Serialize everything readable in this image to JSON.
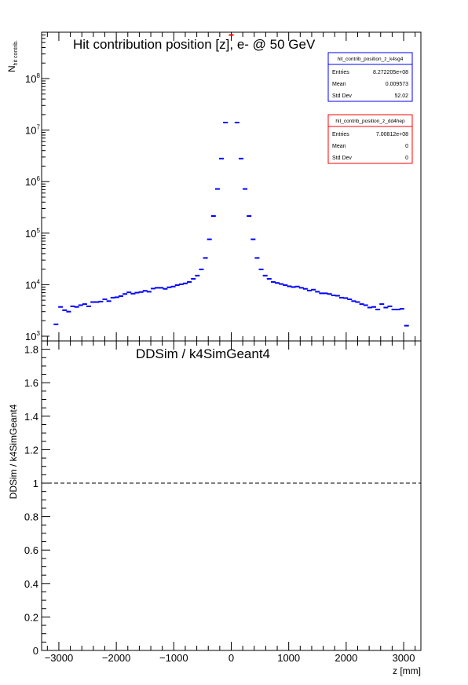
{
  "chart_data": [
    {
      "type": "line",
      "title": "Hit contribution position [z],  e- @ 50 GeV",
      "xlabel": "",
      "ylabel": "N",
      "ylabel_sub": "hit contrib.",
      "yscale": "log",
      "xlim": [
        -3300,
        3300
      ],
      "ylim": [
        900,
        700000000
      ],
      "yticks": [
        {
          "value": 1000,
          "base": "10",
          "exp": "3"
        },
        {
          "value": 10000,
          "base": "10",
          "exp": "4"
        },
        {
          "value": 100000,
          "base": "10",
          "exp": "5"
        },
        {
          "value": 1000000,
          "base": "10",
          "exp": "6"
        },
        {
          "value": 10000000,
          "base": "10",
          "exp": "7"
        },
        {
          "value": 100000000,
          "base": "10",
          "exp": "8"
        }
      ],
      "series": [
        {
          "name": "hit_contrib_position_z_k4sg4",
          "color": "#0000ff",
          "x": [
            -3050,
            -2970,
            -2900,
            -2830,
            -2760,
            -2690,
            -2620,
            -2550,
            -2480,
            -2410,
            -2340,
            -2270,
            -2200,
            -2130,
            -2060,
            -1990,
            -1920,
            -1850,
            -1780,
            -1710,
            -1640,
            -1570,
            -1500,
            -1430,
            -1360,
            -1290,
            -1220,
            -1150,
            -1080,
            -1010,
            -940,
            -870,
            -800,
            -730,
            -660,
            -590,
            -520,
            -450,
            -380,
            -310,
            -240,
            -170,
            -100,
            100,
            170,
            240,
            310,
            380,
            450,
            520,
            590,
            660,
            730,
            800,
            870,
            940,
            1010,
            1080,
            1150,
            1220,
            1290,
            1360,
            1430,
            1500,
            1570,
            1640,
            1710,
            1780,
            1850,
            1920,
            1990,
            2060,
            2130,
            2200,
            2270,
            2340,
            2410,
            2480,
            2550,
            2620,
            2690,
            2760,
            2830,
            2900,
            2970,
            3050
          ],
          "y": [
            1700,
            3700,
            3200,
            3000,
            3800,
            3700,
            4000,
            4200,
            3800,
            4600,
            4600,
            4700,
            5200,
            4800,
            5600,
            5700,
            6000,
            6600,
            7100,
            6700,
            7000,
            7200,
            7600,
            7300,
            8400,
            8700,
            8700,
            8300,
            8900,
            9200,
            9800,
            10200,
            10600,
            11300,
            13000,
            15000,
            19800,
            33000,
            76000,
            215000,
            720000,
            2800000,
            14000000,
            14000000,
            2800000,
            720000,
            215000,
            76000,
            33000,
            19800,
            15000,
            13000,
            11300,
            10800,
            10300,
            9800,
            9300,
            9000,
            9200,
            8700,
            8300,
            7700,
            8000,
            7300,
            6800,
            6800,
            6600,
            6200,
            6100,
            5600,
            5500,
            5200,
            4800,
            4600,
            4200,
            4000,
            3600,
            3700,
            3300,
            4200,
            3600,
            3800,
            3300,
            3300,
            3400,
            1600
          ]
        },
        {
          "name": "hit_contrib_position_z_dd4hep",
          "color": "#ff0000",
          "x": [
            0
          ],
          "y": [
            700000000
          ]
        }
      ],
      "stats": [
        {
          "title": "hit_contrib_position_z_k4sg4",
          "color": "#0000ff",
          "rows": [
            [
              "Entries",
              "8.272205e+08"
            ],
            [
              "Mean",
              "0.009573"
            ],
            [
              "Std Dev",
              "52.02"
            ]
          ]
        },
        {
          "title": "hit_contrib_position_z_dd4hep",
          "color": "#ff0000",
          "rows": [
            [
              "Entries",
              "7.00812e+08"
            ],
            [
              "Mean",
              "0"
            ],
            [
              "Std Dev",
              "0"
            ]
          ]
        }
      ]
    },
    {
      "type": "line",
      "title": "DDSim / k4SimGeant4",
      "xlabel": "z [mm]",
      "ylabel": "DDSim / k4SimGeant4",
      "xlim": [
        -3300,
        3300
      ],
      "ylim": [
        0,
        1.85
      ],
      "xticks": [
        -3000,
        -2000,
        -1000,
        0,
        1000,
        2000,
        3000
      ],
      "yticks": [
        0,
        0.2,
        0.4,
        0.6,
        0.8,
        1,
        1.2,
        1.4,
        1.6,
        1.8
      ],
      "reference_line": 1,
      "series": []
    }
  ]
}
